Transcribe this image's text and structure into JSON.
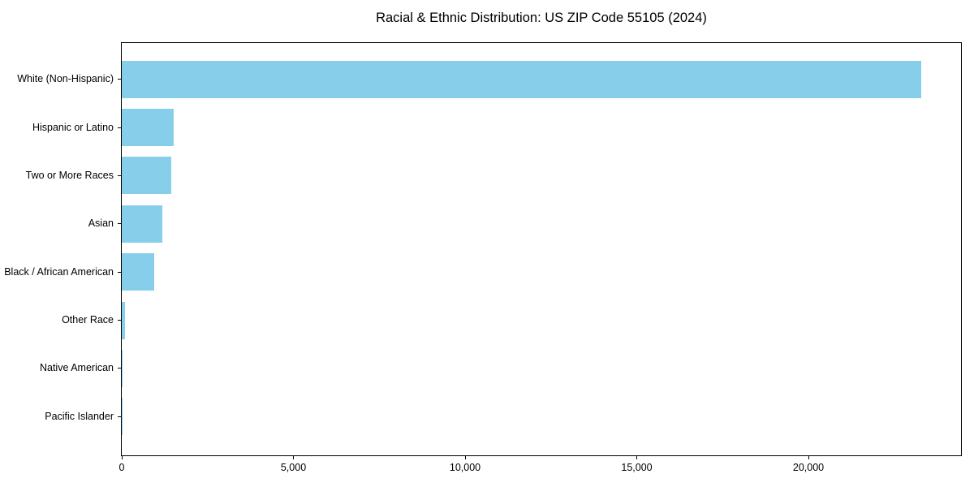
{
  "title": "Racial & Ethnic Distribution: US ZIP Code 55105 (2024)",
  "chart_data": {
    "type": "bar",
    "orientation": "horizontal",
    "title": "Racial & Ethnic Distribution: US ZIP Code 55105 (2024)",
    "categories": [
      "White (Non-Hispanic)",
      "Hispanic or Latino",
      "Two or More Races",
      "Asian",
      "Black / African American",
      "Other Race",
      "Native American",
      "Pacific Islander"
    ],
    "values": [
      23280,
      1510,
      1450,
      1190,
      950,
      100,
      25,
      10
    ],
    "xlabel": "",
    "ylabel": "",
    "xlim": [
      0,
      24444
    ],
    "x_ticks": [
      0,
      5000,
      10000,
      15000,
      20000
    ],
    "x_tick_labels": [
      "0",
      "5,000",
      "10,000",
      "15,000",
      "20,000"
    ],
    "grid": false,
    "legend": null,
    "bar_color": "#87CEEB",
    "axis_color": "#000000",
    "background_color": "#FFFFFF"
  }
}
